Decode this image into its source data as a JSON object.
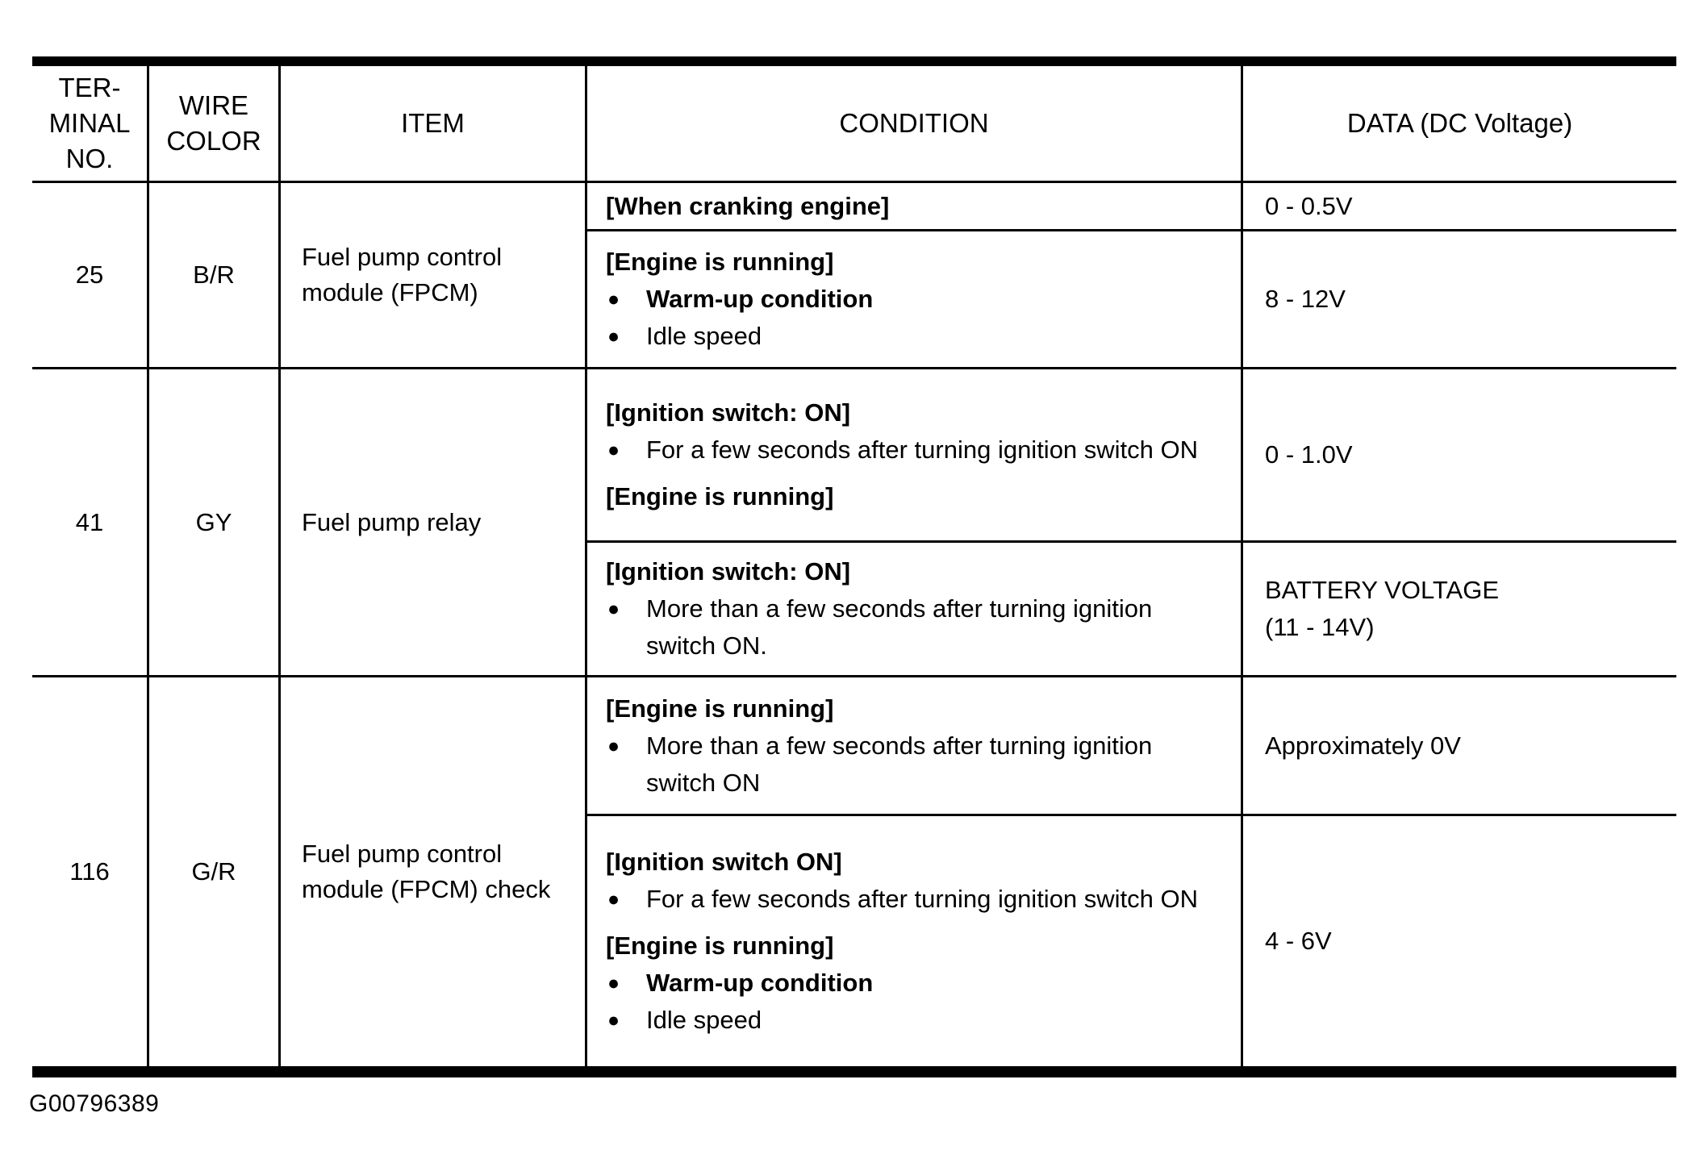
{
  "page": {
    "figure_code": "G00796389"
  },
  "table": {
    "columns": [
      {
        "label": "TER-\nMINAL\nNO."
      },
      {
        "label": "WIRE\nCOLOR"
      },
      {
        "label": "ITEM"
      },
      {
        "label": "CONDITION"
      },
      {
        "label": "DATA (DC Voltage)"
      }
    ],
    "groups": [
      {
        "terminal_no": "25",
        "wire_color": "B/R",
        "item": "Fuel pump control\nmodule (FPCM)",
        "subrows": [
          {
            "condition_lines": [
              "[When cranking engine]"
            ],
            "data": "0 - 0.5V"
          },
          {
            "condition_lines": [
              "[Engine is running]",
              "Warm-up condition",
              "Idle speed"
            ],
            "data": "8 - 12V"
          }
        ]
      },
      {
        "terminal_no": "41",
        "wire_color": "GY",
        "item": "Fuel pump relay",
        "subrows": [
          {
            "condition_lines": [
              "[Ignition switch: ON]",
              "For a few seconds after turning ignition switch ON",
              "[Engine is running]"
            ],
            "data": "0 - 1.0V"
          },
          {
            "condition_lines": [
              "[Ignition switch: ON]",
              "More than a few seconds after turning ignition switch ON."
            ],
            "data": "BATTERY VOLTAGE\n(11 - 14V)"
          }
        ]
      },
      {
        "terminal_no": "116",
        "wire_color": "G/R",
        "item": "Fuel pump control\nmodule (FPCM) check",
        "subrows": [
          {
            "condition_lines": [
              "[Engine is running]",
              "More than a few seconds after turning ignition switch ON"
            ],
            "data": "Approximately 0V"
          },
          {
            "condition_lines": [
              "[Ignition switch ON]",
              "For a few seconds after turning ignition switch ON",
              "[Engine is running]",
              "Warm-up condition",
              "Idle speed"
            ],
            "data": "4 - 6V"
          }
        ]
      }
    ]
  }
}
